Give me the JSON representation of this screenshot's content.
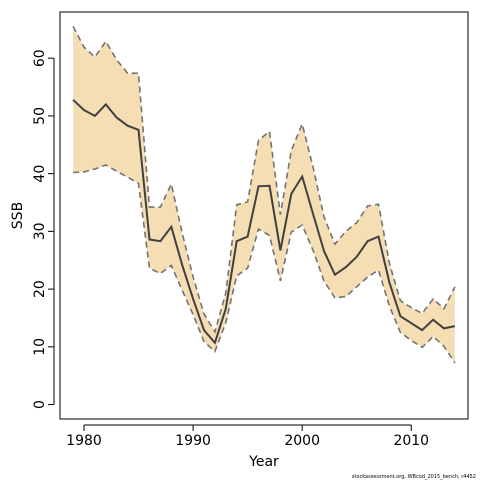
{
  "chart_data": {
    "type": "line",
    "title": "",
    "xlabel": "Year",
    "ylabel": "SSB",
    "xlim": [
      1977.8,
      2015.2
    ],
    "ylim": [
      -2.5,
      68
    ],
    "x_ticks": [
      1980,
      1990,
      2000,
      2010
    ],
    "y_ticks": [
      0,
      10,
      20,
      30,
      40,
      50,
      60
    ],
    "grid": false,
    "credit": "stockassessment.org, WBcod_2015_bench, r4452",
    "colors": {
      "band": "#f5deb3",
      "line": "#404040",
      "bounds": "#737373"
    },
    "years": [
      1979,
      1980,
      1981,
      1982,
      1983,
      1984,
      1985,
      1986,
      1987,
      1988,
      1989,
      1990,
      1991,
      1992,
      1993,
      1994,
      1995,
      1996,
      1997,
      1998,
      1999,
      2000,
      2001,
      2002,
      2003,
      2004,
      2005,
      2006,
      2007,
      2008,
      2009,
      2010,
      2011,
      2012,
      2013,
      2014
    ],
    "series": [
      {
        "name": "",
        "role": "estimate",
        "values": [
          52.8,
          51.0,
          50.0,
          52.0,
          49.7,
          48.3,
          47.6,
          28.6,
          28.3,
          30.8,
          24.2,
          18.3,
          12.9,
          10.7,
          16.6,
          28.3,
          29.1,
          37.8,
          37.9,
          26.7,
          36.5,
          39.5,
          33.0,
          26.6,
          22.5,
          23.8,
          25.6,
          28.3,
          29.1,
          21.1,
          15.3,
          14.1,
          12.9,
          14.7,
          13.2,
          13.6
        ]
      },
      {
        "name": "",
        "role": "lower",
        "values": [
          40.2,
          40.3,
          40.8,
          41.5,
          40.4,
          39.4,
          38.3,
          23.6,
          22.7,
          24.1,
          19.8,
          15.6,
          10.9,
          9.2,
          14.2,
          22.3,
          23.6,
          30.4,
          29.3,
          21.4,
          29.9,
          31.1,
          26.7,
          21.4,
          18.5,
          18.7,
          20.4,
          22.1,
          23.3,
          17.0,
          12.5,
          11.1,
          9.9,
          11.8,
          10.1,
          7.2
        ]
      },
      {
        "name": "",
        "role": "upper",
        "values": [
          65.5,
          61.9,
          60.2,
          62.9,
          59.7,
          57.4,
          57.4,
          34.2,
          34.2,
          38.2,
          29.7,
          22.1,
          15.7,
          12.6,
          19.3,
          34.6,
          35.1,
          45.8,
          47.3,
          32.9,
          44.0,
          48.6,
          41.1,
          32.5,
          27.8,
          30.0,
          31.5,
          34.4,
          34.7,
          24.4,
          18.0,
          16.8,
          15.8,
          18.3,
          16.6,
          20.4
        ]
      }
    ]
  }
}
